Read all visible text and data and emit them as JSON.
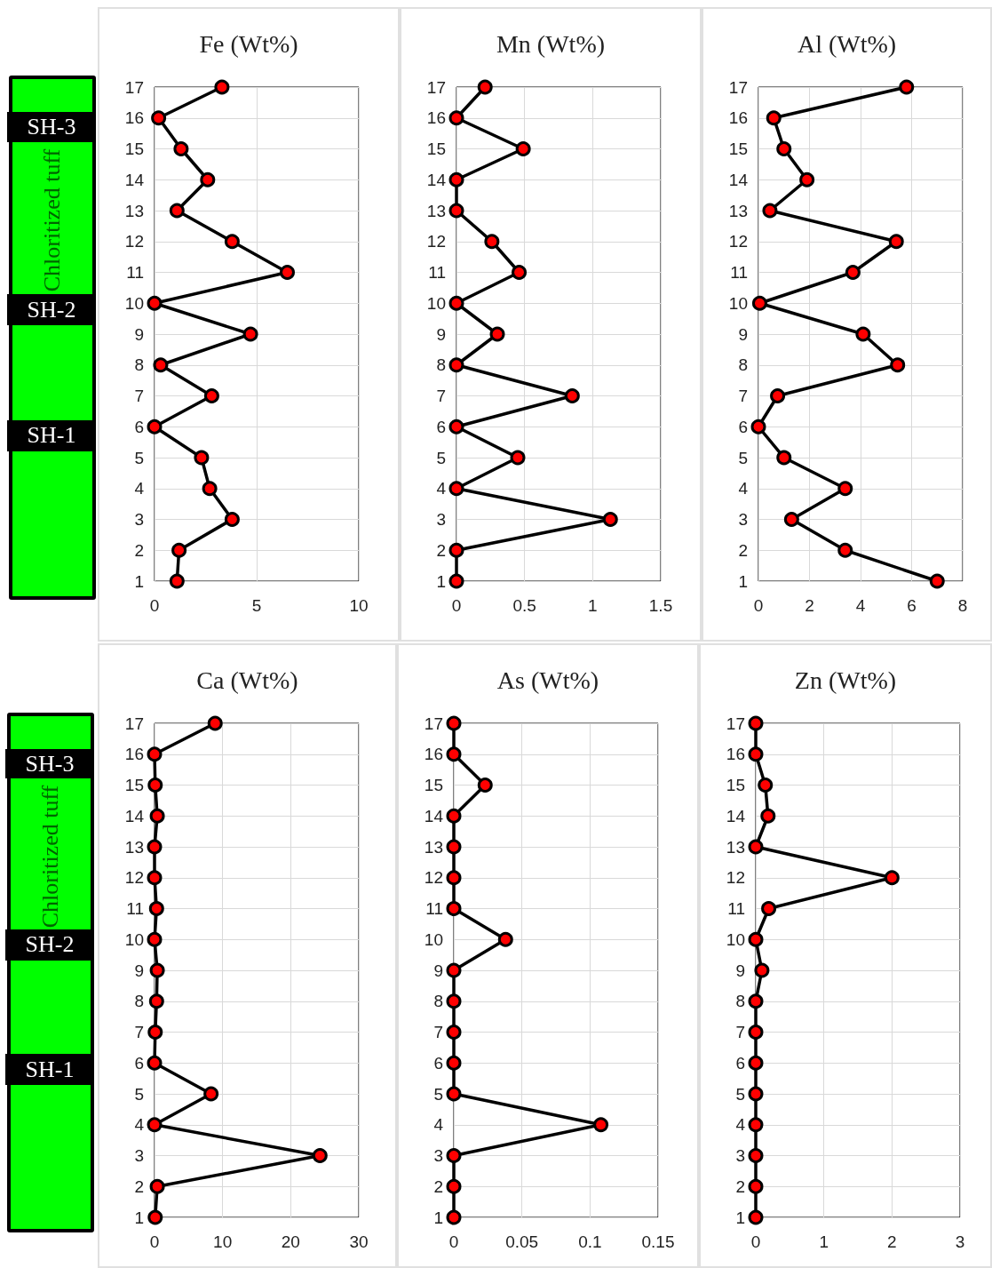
{
  "chart_data": [
    {
      "type": "other",
      "annotations": [
        "SH-3",
        "Chloritized tuff",
        "SH-2",
        "SH-1"
      ]
    },
    {
      "type": "line",
      "title": "Fe (Wt%)",
      "marker": "circle",
      "line_style": "solid",
      "grid": true,
      "xlim": [
        0,
        10
      ],
      "xticks": [
        0,
        5,
        10
      ],
      "ylim": [
        1,
        17
      ],
      "yticks": [
        1,
        2,
        3,
        4,
        5,
        6,
        7,
        8,
        9,
        10,
        11,
        12,
        13,
        14,
        15,
        16,
        17
      ],
      "series": [
        {
          "color": "#ff0000",
          "x": [
            1.1,
            1.2,
            3.8,
            2.7,
            2.3,
            0,
            2.8,
            0.3,
            4.7,
            0,
            6.5,
            3.8,
            1.1,
            2.6,
            1.3,
            0.2,
            3.3
          ],
          "values": [
            1,
            2,
            3,
            4,
            5,
            6,
            7,
            8,
            9,
            10,
            11,
            12,
            13,
            14,
            15,
            16,
            17
          ]
        }
      ]
    },
    {
      "type": "line",
      "title": "Mn (Wt%)",
      "marker": "circle",
      "line_style": "solid",
      "grid": true,
      "xlim": [
        0,
        1.5
      ],
      "xticks": [
        0,
        0.5,
        1,
        1.5
      ],
      "ylim": [
        1,
        17
      ],
      "yticks": [
        1,
        2,
        3,
        4,
        5,
        6,
        7,
        8,
        9,
        10,
        11,
        12,
        13,
        14,
        15,
        16,
        17
      ],
      "series": [
        {
          "color": "#ff0000",
          "x": [
            0,
            0,
            1.13,
            0,
            0.45,
            0,
            0.85,
            0,
            0.3,
            0,
            0.46,
            0.26,
            0,
            0,
            0.49,
            0,
            0.21
          ],
          "values": [
            1,
            2,
            3,
            4,
            5,
            6,
            7,
            8,
            9,
            10,
            11,
            12,
            13,
            14,
            15,
            16,
            17
          ]
        }
      ]
    },
    {
      "type": "line",
      "title": "Al (Wt%)",
      "marker": "circle",
      "line_style": "solid",
      "grid": true,
      "xlim": [
        0,
        8
      ],
      "xticks": [
        0,
        2,
        4,
        6,
        8
      ],
      "ylim": [
        1,
        17
      ],
      "yticks": [
        1,
        2,
        3,
        4,
        5,
        6,
        7,
        8,
        9,
        10,
        11,
        12,
        13,
        14,
        15,
        16,
        17
      ],
      "series": [
        {
          "color": "#ff0000",
          "x": [
            7.0,
            3.4,
            1.3,
            3.4,
            1.0,
            0,
            0.75,
            5.45,
            4.1,
            0.05,
            3.7,
            5.4,
            0.45,
            1.9,
            1.0,
            0.6,
            5.8
          ],
          "values": [
            1,
            2,
            3,
            4,
            5,
            6,
            7,
            8,
            9,
            10,
            11,
            12,
            13,
            14,
            15,
            16,
            17
          ]
        }
      ]
    },
    {
      "type": "other",
      "annotations": [
        "SH-3",
        "Chloritized tuff",
        "SH-2",
        "SH-1"
      ]
    },
    {
      "type": "line",
      "title": "Ca (Wt%)",
      "marker": "circle",
      "line_style": "solid",
      "grid": true,
      "xlim": [
        0,
        30
      ],
      "xticks": [
        0,
        10,
        20,
        30
      ],
      "ylim": [
        1,
        17
      ],
      "yticks": [
        1,
        2,
        3,
        4,
        5,
        6,
        7,
        8,
        9,
        10,
        11,
        12,
        13,
        14,
        15,
        16,
        17
      ],
      "series": [
        {
          "color": "#ff0000",
          "x": [
            0.1,
            0.4,
            24.3,
            0,
            8.3,
            0,
            0.1,
            0.3,
            0.4,
            0,
            0.3,
            0,
            0,
            0.4,
            0.1,
            0,
            8.9
          ],
          "values": [
            1,
            2,
            3,
            4,
            5,
            6,
            7,
            8,
            9,
            10,
            11,
            12,
            13,
            14,
            15,
            16,
            17
          ]
        }
      ]
    },
    {
      "type": "line",
      "title": "As (Wt%)",
      "marker": "circle",
      "line_style": "solid",
      "grid": true,
      "xlim": [
        0,
        0.15
      ],
      "xticks": [
        0,
        0.05,
        0.1,
        0.15
      ],
      "ylim": [
        1,
        17
      ],
      "yticks": [
        1,
        2,
        3,
        4,
        5,
        6,
        7,
        8,
        9,
        10,
        11,
        12,
        13,
        14,
        15,
        16,
        17
      ],
      "series": [
        {
          "color": "#ff0000",
          "x": [
            0,
            0,
            0,
            0.108,
            0,
            0,
            0,
            0,
            0,
            0.038,
            0,
            0,
            0,
            0,
            0.023,
            0,
            0
          ],
          "values": [
            1,
            2,
            3,
            4,
            5,
            6,
            7,
            8,
            9,
            10,
            11,
            12,
            13,
            14,
            15,
            16,
            17
          ]
        }
      ]
    },
    {
      "type": "line",
      "title": "Zn (Wt%)",
      "marker": "circle",
      "line_style": "solid",
      "grid": true,
      "xlim": [
        0,
        3
      ],
      "xticks": [
        0,
        1,
        2,
        3
      ],
      "ylim": [
        1,
        17
      ],
      "yticks": [
        1,
        2,
        3,
        4,
        5,
        6,
        7,
        8,
        9,
        10,
        11,
        12,
        13,
        14,
        15,
        16,
        17
      ],
      "series": [
        {
          "color": "#ff0000",
          "x": [
            0,
            0,
            0,
            0,
            0,
            0,
            0,
            0,
            0.09,
            0,
            0.19,
            2.0,
            0,
            0.18,
            0.14,
            0,
            0
          ],
          "values": [
            1,
            2,
            3,
            4,
            5,
            6,
            7,
            8,
            9,
            10,
            11,
            12,
            13,
            14,
            15,
            16,
            17
          ]
        }
      ]
    }
  ]
}
